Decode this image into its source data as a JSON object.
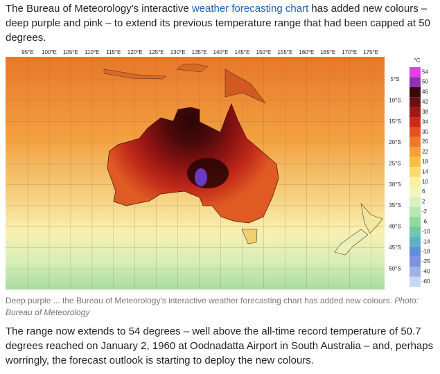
{
  "article": {
    "intro": {
      "before": "The Bureau of Meteorology's interactive ",
      "link": "weather forecasting chart",
      "after": " has added new colours – deep purple and pink – to extend its previous temperature range that had been capped at 50 degrees."
    },
    "map": {
      "longitudes": [
        "95°E",
        "100°E",
        "105°E",
        "110°E",
        "115°E",
        "120°E",
        "125°E",
        "130°E",
        "135°E",
        "140°E",
        "145°E",
        "150°E",
        "155°E",
        "160°E",
        "165°E",
        "170°E",
        "175°E"
      ],
      "latitudes": [
        "5°S",
        "10°S",
        "15°S",
        "20°S",
        "25°S",
        "30°S",
        "35°S",
        "40°S",
        "45°S",
        "50°S"
      ],
      "legend": {
        "unit": "°C",
        "levels": [
          {
            "value": 54,
            "color": "#e040e0"
          },
          {
            "value": 50,
            "color": "#9030b0"
          },
          {
            "value": 46,
            "color": "#3a0808"
          },
          {
            "value": 42,
            "color": "#6a1010"
          },
          {
            "value": 38,
            "color": "#a01818"
          },
          {
            "value": 34,
            "color": "#d02818"
          },
          {
            "value": 30,
            "color": "#e85020"
          },
          {
            "value": 26,
            "color": "#f07828"
          },
          {
            "value": 22,
            "color": "#f5a030"
          },
          {
            "value": 18,
            "color": "#f8c040"
          },
          {
            "value": 14,
            "color": "#f8dc70"
          },
          {
            "value": 10,
            "color": "#f8f0a0"
          },
          {
            "value": 6,
            "color": "#f0f8c0"
          },
          {
            "value": 2,
            "color": "#d8f0c0"
          },
          {
            "value": -2,
            "color": "#b8e8b0"
          },
          {
            "value": -6,
            "color": "#90d8a0"
          },
          {
            "value": -10,
            "color": "#70c8a8"
          },
          {
            "value": -14,
            "color": "#60b0c8"
          },
          {
            "value": -18,
            "color": "#6090d8"
          },
          {
            "value": -25,
            "color": "#8090e0"
          },
          {
            "value": -40,
            "color": "#a0b0e8"
          },
          {
            "value": -60,
            "color": "#c8d8f0"
          }
        ]
      }
    },
    "caption": {
      "text": "Deep purple ... the Bureau of Meteorology's interactive weather forecasting chart has added new colours. ",
      "credit": "Photo: Bureau of Meteorology"
    },
    "body": "The range now extends to 54 degrees – well above the all-time record temperature of 50.7 degrees reached on January 2, 1960 at Oodnadatta Airport in South Australia – and, perhaps worringly, the forecast outlook is starting to deploy the new colours."
  }
}
